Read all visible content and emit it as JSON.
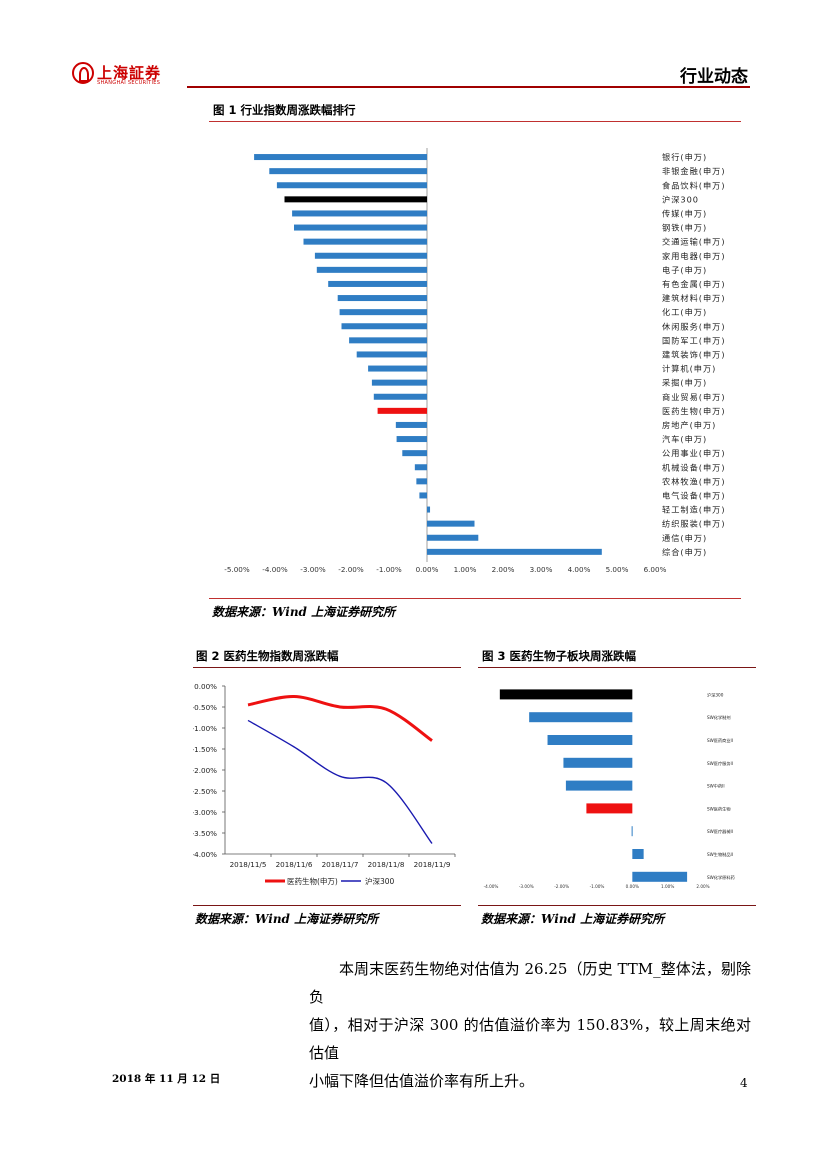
{
  "header": {
    "logo_cn": "上海証券",
    "logo_en": "SHANGHAI SECURITIES",
    "section_title": "行业动态"
  },
  "figure1": {
    "title": "图 1 行业指数周涨跌幅排行",
    "source": "数据来源：Wind  上海证券研究所"
  },
  "figure2": {
    "title": "图 2 医药生物指数周涨跌幅",
    "source": "数据来源：Wind 上海证券研究所"
  },
  "figure3": {
    "title": "图 3 医药生物子板块周涨跌幅",
    "source": "数据来源：Wind 上海证券研究所"
  },
  "chart_data": [
    {
      "id": "fig1",
      "type": "bar",
      "orientation": "horizontal",
      "title": "图 1 行业指数周涨跌幅排行",
      "xlim": [
        -5.0,
        6.0
      ],
      "ticks": [
        "-5.00%",
        "-4.00%",
        "-3.00%",
        "-2.00%",
        "-1.00%",
        "0.00%",
        "1.00%",
        "2.00%",
        "3.00%",
        "4.00%",
        "5.00%",
        "6.00%"
      ],
      "categories": [
        "银行(申万)",
        "非银金融(申万)",
        "食品饮料(申万)",
        "沪深300",
        "传媒(申万)",
        "钢铁(申万)",
        "交通运输(申万)",
        "家用电器(申万)",
        "电子(申万)",
        "有色金属(申万)",
        "建筑材料(申万)",
        "化工(申万)",
        "休闲服务(申万)",
        "国防军工(申万)",
        "建筑装饰(申万)",
        "计算机(申万)",
        "采掘(申万)",
        "商业贸易(申万)",
        "医药生物(申万)",
        "房地产(申万)",
        "汽车(申万)",
        "公用事业(申万)",
        "机械设备(申万)",
        "农林牧渔(申万)",
        "电气设备(申万)",
        "轻工制造(申万)",
        "纺织服装(申万)",
        "通信(申万)",
        "综合(申万)"
      ],
      "values": [
        -4.55,
        -4.15,
        -3.95,
        -3.75,
        -3.55,
        -3.5,
        -3.25,
        -2.95,
        -2.9,
        -2.6,
        -2.35,
        -2.3,
        -2.25,
        -2.05,
        -1.85,
        -1.55,
        -1.45,
        -1.4,
        -1.3,
        -0.82,
        -0.8,
        -0.65,
        -0.32,
        -0.28,
        -0.2,
        0.08,
        1.25,
        1.35,
        4.6
      ],
      "colors": [
        "#2f7dc4",
        "#2f7dc4",
        "#2f7dc4",
        "#000000",
        "#2f7dc4",
        "#2f7dc4",
        "#2f7dc4",
        "#2f7dc4",
        "#2f7dc4",
        "#2f7dc4",
        "#2f7dc4",
        "#2f7dc4",
        "#2f7dc4",
        "#2f7dc4",
        "#2f7dc4",
        "#2f7dc4",
        "#2f7dc4",
        "#2f7dc4",
        "#ee1111",
        "#2f7dc4",
        "#2f7dc4",
        "#2f7dc4",
        "#2f7dc4",
        "#2f7dc4",
        "#2f7dc4",
        "#2f7dc4",
        "#2f7dc4",
        "#2f7dc4",
        "#2f7dc4"
      ]
    },
    {
      "id": "fig2",
      "type": "line",
      "title": "图 2 医药生物指数周涨跌幅",
      "categories": [
        "2018/11/5",
        "2018/11/6",
        "2018/11/7",
        "2018/11/8",
        "2018/11/9"
      ],
      "ylim": [
        -4.0,
        0.0
      ],
      "yticks": [
        "0.00%",
        "-0.50%",
        "-1.00%",
        "-1.50%",
        "-2.00%",
        "-2.50%",
        "-3.00%",
        "-3.50%",
        "-4.00%"
      ],
      "series": [
        {
          "name": "医药生物(申万)",
          "color": "#ee1111",
          "values": [
            -0.45,
            -0.25,
            -0.5,
            -0.55,
            -1.3
          ]
        },
        {
          "name": "沪深300",
          "color": "#1a1ab0",
          "values": [
            -0.82,
            -1.45,
            -2.15,
            -2.3,
            -3.75
          ]
        }
      ]
    },
    {
      "id": "fig3",
      "type": "bar",
      "orientation": "horizontal",
      "title": "图 3 医药生物子板块周涨跌幅",
      "xlim": [
        -4.0,
        2.0
      ],
      "ticks": [
        "-4.00%",
        "-3.00%",
        "-2.00%",
        "-1.00%",
        "0.00%",
        "1.00%",
        "2.00%"
      ],
      "categories": [
        "沪深300",
        "SW化学制剂",
        "SW医药商业II",
        "SW医疗服务II",
        "SW中药II",
        "SW医药生物",
        "SW医疗器械II",
        "SW生物制品II",
        "SW化学原料药"
      ],
      "values": [
        -3.75,
        -2.92,
        -2.4,
        -1.95,
        -1.88,
        -1.3,
        -0.02,
        0.32,
        1.55
      ],
      "colors": [
        "#000000",
        "#2f7dc4",
        "#2f7dc4",
        "#2f7dc4",
        "#2f7dc4",
        "#ee1111",
        "#2f7dc4",
        "#2f7dc4",
        "#2f7dc4"
      ]
    }
  ],
  "paragraph": {
    "line1": "本周末医药生物绝对估值为 26.25（历史 TTM_整体法，剔除负",
    "line2": "值），相对于沪深 300 的估值溢价率为 150.83%，较上周末绝对估值",
    "line3": "小幅下降但估值溢价率有所上升。"
  },
  "footer": {
    "date": "2018 年 11 月 12 日",
    "page": "4"
  }
}
